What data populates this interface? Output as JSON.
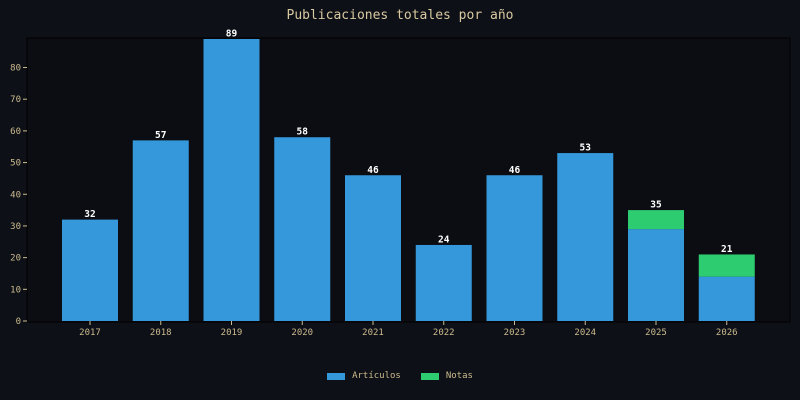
{
  "chart_data": {
    "type": "bar",
    "stacked": true,
    "title": "Publicaciones totales por año",
    "xlabel": "",
    "ylabel": "",
    "categories": [
      "2017",
      "2018",
      "2019",
      "2020",
      "2021",
      "2022",
      "2023",
      "2024",
      "2025",
      "2026"
    ],
    "series": [
      {
        "name": "Artículos",
        "color": "#3498db",
        "values": [
          32,
          57,
          89,
          58,
          46,
          24,
          46,
          53,
          29,
          14
        ]
      },
      {
        "name": "Notas",
        "color": "#2ecc71",
        "values": [
          0,
          0,
          0,
          0,
          0,
          0,
          0,
          0,
          6,
          7
        ]
      }
    ],
    "totals": [
      32,
      57,
      89,
      58,
      46,
      24,
      46,
      53,
      35,
      21
    ],
    "ylim": [
      0,
      89
    ],
    "yticks": [
      0,
      10,
      20,
      30,
      40,
      50,
      60,
      70,
      80
    ],
    "grid": false,
    "legend_position": "bottom-center"
  },
  "colors": {
    "background": "#0d1017",
    "plot_background": "#0b0d12",
    "text": "#d9c9a0",
    "tick_text": "#cdbb8e",
    "label_text": "#ffffff"
  }
}
